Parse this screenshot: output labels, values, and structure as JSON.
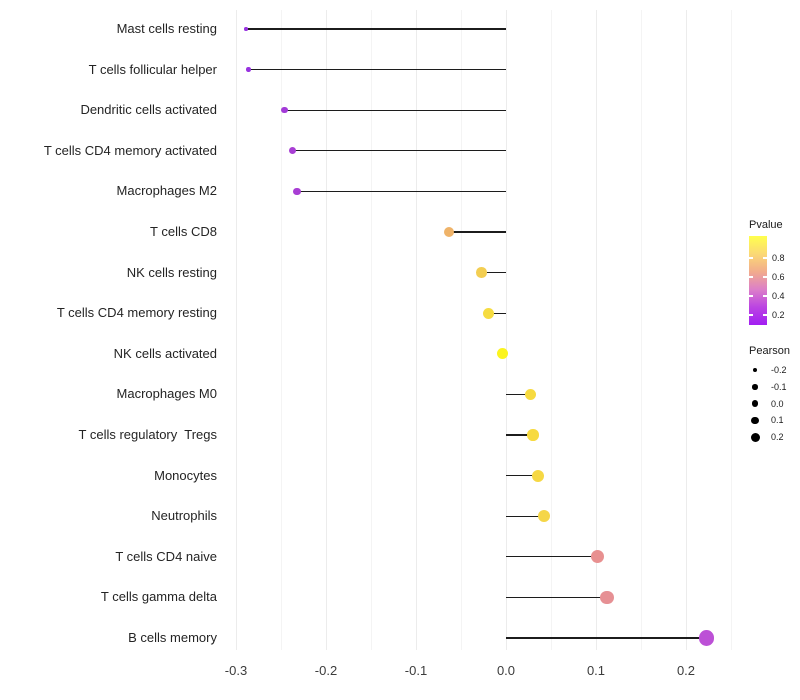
{
  "chart_data": {
    "type": "scatter",
    "variant": "lollipop",
    "title": "",
    "xlabel": "",
    "ylabel": "",
    "grid": "vertical gridlines every 0.05, no axis lines",
    "legend_position": "right, vertically centered",
    "xlim": [
      -0.325,
      0.26
    ],
    "x_ticks": [
      {
        "label": "-0.3",
        "value": -0.3
      },
      {
        "label": "-0.2",
        "value": -0.2
      },
      {
        "label": "-0.1",
        "value": -0.1
      },
      {
        "label": "0.0",
        "value": 0.0
      },
      {
        "label": "0.1",
        "value": 0.1
      },
      {
        "label": "0.2",
        "value": 0.2
      }
    ],
    "rows": [
      {
        "label": "Mast cells resting",
        "pearson": -0.289,
        "color": "#9832e0",
        "diameter": 3.5
      },
      {
        "label": "T cells follicular helper",
        "pearson": -0.286,
        "color": "#9832e0",
        "diameter": 4.5
      },
      {
        "label": "Dendritic cells activated",
        "pearson": -0.246,
        "color": "#a33ad8",
        "diameter": 6.5
      },
      {
        "label": "T cells CD4 memory activated",
        "pearson": -0.237,
        "color": "#a83ed4",
        "diameter": 7
      },
      {
        "label": "Macrophages M2",
        "pearson": -0.232,
        "color": "#a83ed4",
        "diameter": 7.5
      },
      {
        "label": "T cells CD8",
        "pearson": -0.063,
        "color": "#efb369",
        "diameter": 10
      },
      {
        "label": "NK cells resting",
        "pearson": -0.027,
        "color": "#f3ce52",
        "diameter": 10.5
      },
      {
        "label": "T cells CD4 memory resting",
        "pearson": -0.019,
        "color": "#f6dc41",
        "diameter": 11
      },
      {
        "label": "NK cells activated",
        "pearson": -0.004,
        "color": "#fbf41e",
        "diameter": 11
      },
      {
        "label": "Macrophages M0",
        "pearson": 0.027,
        "color": "#f7da3f",
        "diameter": 11.5
      },
      {
        "label": "T cells regulatory  Tregs",
        "pearson": 0.03,
        "color": "#f7da3f",
        "diameter": 11.5
      },
      {
        "label": "Monocytes",
        "pearson": 0.035,
        "color": "#f6d844",
        "diameter": 12
      },
      {
        "label": "Neutrophils",
        "pearson": 0.042,
        "color": "#f5d648",
        "diameter": 12
      },
      {
        "label": "T cells CD4 naive",
        "pearson": 0.102,
        "color": "#e89090",
        "diameter": 13
      },
      {
        "label": "T cells gamma delta",
        "pearson": 0.112,
        "color": "#e69094",
        "diameter": 13.5
      },
      {
        "label": "B cells memory",
        "pearson": 0.223,
        "color": "#bc50d6",
        "diameter": 15.5
      }
    ],
    "legends": {
      "pvalue": {
        "title": "Pvalue",
        "gradient_stops": [
          "#ffff4d",
          "#fbd975",
          "#f2ac8c",
          "#dc7fc8",
          "#bb44e2",
          "#a21ef2"
        ],
        "ticks": [
          "0.8",
          "0.6",
          "0.4",
          "0.2"
        ],
        "range": [
          1.0,
          0.1
        ]
      },
      "pearson": {
        "title": "Pearson",
        "dot_color": "#000000",
        "entries": [
          {
            "label": "-0.2",
            "diameter": 4.5
          },
          {
            "label": "-0.1",
            "diameter": 5.5
          },
          {
            "label": "0.0",
            "diameter": 6.5
          },
          {
            "label": "0.1",
            "diameter": 7.5
          },
          {
            "label": "0.2",
            "diameter": 9
          }
        ]
      }
    },
    "stem_color": "#1c1c1c"
  }
}
